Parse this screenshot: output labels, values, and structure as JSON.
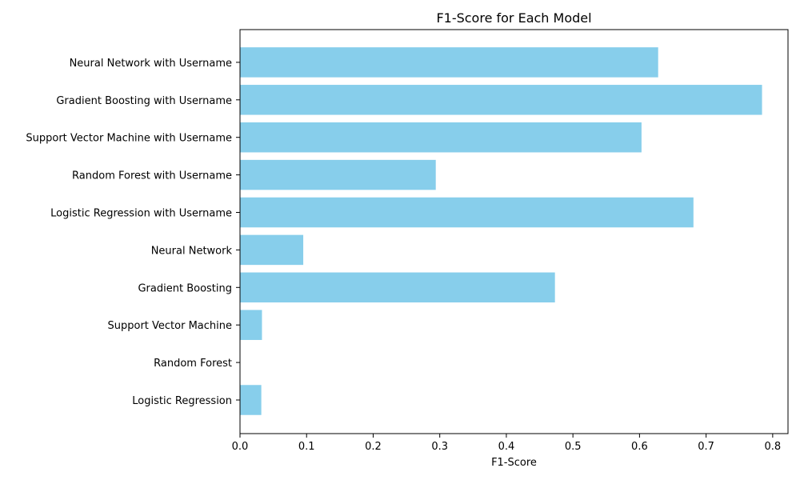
{
  "chart_data": {
    "type": "bar",
    "orientation": "horizontal",
    "title": "F1-Score for Each Model",
    "xlabel": "F1-Score",
    "ylabel": "",
    "xlim": [
      0,
      0.823
    ],
    "xticks": [
      0.0,
      0.1,
      0.2,
      0.3,
      0.4,
      0.5,
      0.6,
      0.7,
      0.8
    ],
    "xtick_labels": [
      "0.0",
      "0.1",
      "0.2",
      "0.3",
      "0.4",
      "0.5",
      "0.6",
      "0.7",
      "0.8"
    ],
    "grid": false,
    "legend": "none",
    "bar_color": "#87CEEB",
    "categories": [
      "Logistic Regression",
      "Random Forest",
      "Support Vector Machine",
      "Gradient Boosting",
      "Neural Network",
      "Logistic Regression with Username",
      "Random Forest with Username",
      "Support Vector Machine with Username",
      "Gradient Boosting with Username",
      "Neural Network with Username"
    ],
    "values": [
      0.032,
      0.0,
      0.033,
      0.473,
      0.095,
      0.681,
      0.294,
      0.603,
      0.784,
      0.628
    ]
  }
}
